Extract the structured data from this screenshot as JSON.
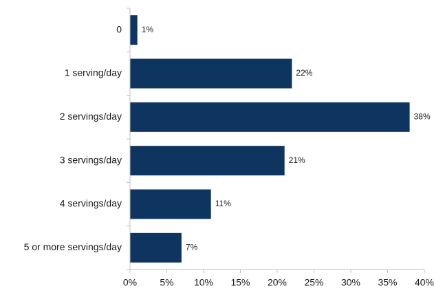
{
  "chart_data": {
    "type": "bar",
    "orientation": "horizontal",
    "categories": [
      "0",
      "1 serving/day",
      "2 servings/day",
      "3 servings/day",
      "4 servings/day",
      "5 or more servings/day"
    ],
    "values": [
      1,
      22,
      38,
      21,
      11,
      7
    ],
    "data_labels": [
      "1%",
      "22%",
      "38%",
      "21%",
      "11%",
      "7%"
    ],
    "x_ticks": [
      0,
      5,
      10,
      15,
      20,
      25,
      30,
      35,
      40
    ],
    "x_tick_labels": [
      "0%",
      "5%",
      "10%",
      "15%",
      "20%",
      "25%",
      "30%",
      "35%",
      "40%"
    ],
    "xlim": [
      0,
      40
    ],
    "title": "",
    "xlabel": "",
    "ylabel": "",
    "grid": false,
    "legend": "none",
    "bar_color": "#0e3460",
    "axis_color": "#bfbfbf"
  }
}
